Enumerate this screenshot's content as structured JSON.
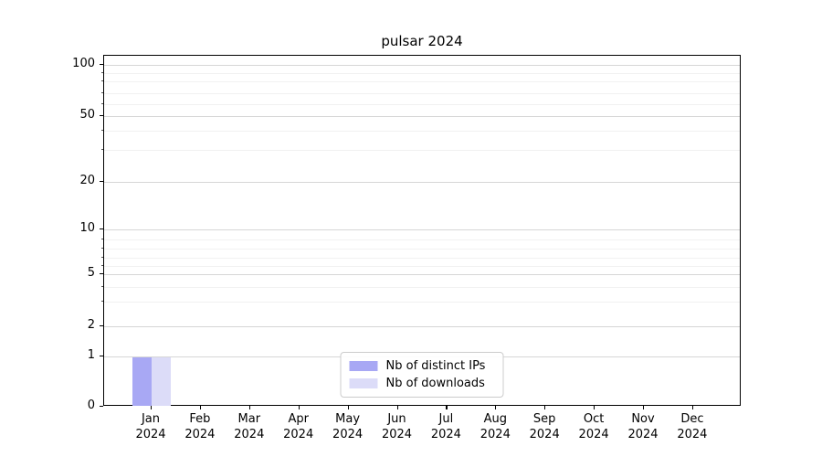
{
  "chart_data": {
    "type": "bar",
    "title": "pulsar 2024",
    "categories": [
      "Jan",
      "Feb",
      "Mar",
      "Apr",
      "May",
      "Jun",
      "Jul",
      "Aug",
      "Sep",
      "Oct",
      "Nov",
      "Dec"
    ],
    "category_year": "2024",
    "series": [
      {
        "name": "Nb of distinct IPs",
        "color": "#a8a8f4",
        "values": [
          1,
          0,
          0,
          0,
          0,
          0,
          0,
          0,
          0,
          0,
          0,
          0
        ]
      },
      {
        "name": "Nb of downloads",
        "color": "#dcdcf8",
        "values": [
          1,
          0,
          0,
          0,
          0,
          0,
          0,
          0,
          0,
          0,
          0,
          0
        ]
      }
    ],
    "xlabel": "",
    "ylabel": "",
    "ylim": [
      0,
      100
    ],
    "yscale": "log-like with linear 0-1 segment",
    "yticks": [
      {
        "value": 100,
        "label": "100"
      },
      {
        "value": 50,
        "label": "50"
      },
      {
        "value": 20,
        "label": "20"
      },
      {
        "value": 10,
        "label": "10"
      },
      {
        "value": 5,
        "label": "5"
      },
      {
        "value": 2,
        "label": "2"
      },
      {
        "value": 1,
        "label": "1"
      },
      {
        "value": 0,
        "label": "0"
      }
    ],
    "minor_ytick_values": [
      90,
      80,
      70,
      60,
      40,
      30,
      9,
      8,
      7,
      6,
      4,
      3
    ],
    "grid": {
      "horizontal_major": true,
      "horizontal_minor": true,
      "vertical": false
    },
    "legend": {
      "position": "bottom-center-inside"
    },
    "colors": {
      "major_grid": "#d6d6d6",
      "minor_grid": "#f1f1f1",
      "axis": "#000000",
      "background": "#ffffff"
    }
  }
}
